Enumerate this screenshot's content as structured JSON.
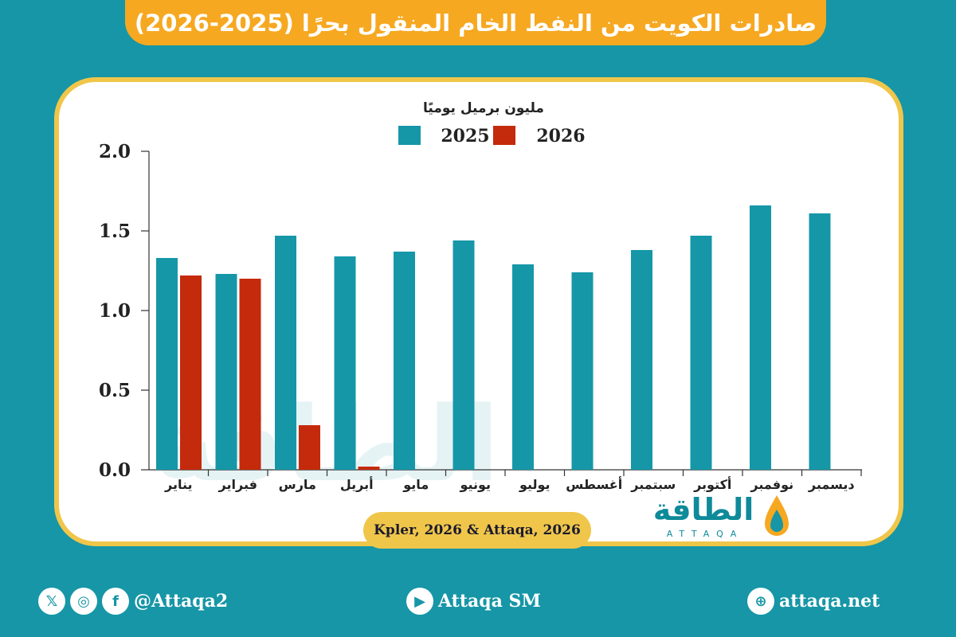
{
  "title": "صادرات الكويت من النفط الخام المنقول بحرًا (2025-2026)",
  "source": "Kpler, 2026 & Attaqa, 2026",
  "logo": {
    "arabic": "الطاقة",
    "latin": "ATTAQA"
  },
  "footer": {
    "social_handle": "@Attaqa2",
    "youtube": "Attaqa SM",
    "website": "attaqa.net"
  },
  "colors": {
    "series_2025": "#1597a8",
    "series_2026": "#c42a0c",
    "banner": "#f6a821",
    "card_border": "#f0c64a",
    "background": "#1696a6"
  },
  "chart_data": {
    "type": "bar",
    "unit_label": "مليون برميل يوميًا",
    "categories": [
      "يناير",
      "فبراير",
      "مارس",
      "أبريل",
      "مايو",
      "يونيو",
      "يوليو",
      "أغسطس",
      "سبتمبر",
      "أكتوبر",
      "نوفمبر",
      "ديسمبر"
    ],
    "series": [
      {
        "name": "2025",
        "values": [
          1.33,
          1.23,
          1.47,
          1.34,
          1.37,
          1.44,
          1.29,
          1.24,
          1.38,
          1.47,
          1.66,
          1.61
        ]
      },
      {
        "name": "2026",
        "values": [
          1.22,
          1.2,
          0.28,
          0.02,
          null,
          null,
          null,
          null,
          null,
          null,
          null,
          null
        ]
      }
    ],
    "ylim": [
      0,
      2.0
    ],
    "yticks": [
      "0.0",
      "0.5",
      "1.0",
      "1.5",
      "2.0"
    ],
    "grid": false,
    "legend_position": "top-center"
  }
}
